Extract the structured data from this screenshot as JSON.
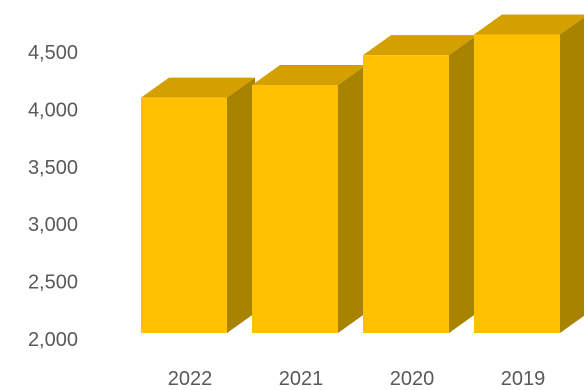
{
  "chart_data": {
    "type": "bar",
    "style": "3d-column",
    "categories": [
      "2022",
      "2021",
      "2020",
      "2019"
    ],
    "values": [
      4050,
      4160,
      4420,
      4600
    ],
    "ylim": [
      2000,
      4500
    ],
    "yticks": [
      {
        "value": 2000,
        "label": "2,000"
      },
      {
        "value": 2500,
        "label": "2,500"
      },
      {
        "value": 3000,
        "label": "3,000"
      },
      {
        "value": 3500,
        "label": "3,500"
      },
      {
        "value": 4000,
        "label": "4,000"
      },
      {
        "value": 4500,
        "label": "4,500"
      }
    ],
    "grid": false,
    "legend": "none",
    "colors": {
      "front": "#FFC000",
      "top": "#D4A000",
      "side": "#A88300",
      "text": "#595959"
    }
  }
}
